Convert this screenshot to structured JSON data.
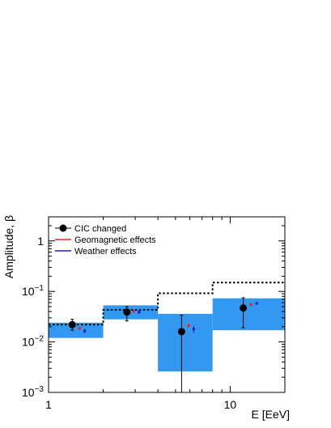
{
  "chart_data": {
    "type": "scatter",
    "xscale": "log",
    "yscale": "log",
    "xlim": [
      1,
      20
    ],
    "ylim": [
      0.001,
      3
    ],
    "xlabel": "E [EeV]",
    "ylabel": "Amplitude, β",
    "x_ticks": [
      {
        "v": 1,
        "label": "1"
      },
      {
        "v": 10,
        "label": "10"
      }
    ],
    "y_ticks": [
      {
        "v": 0.001,
        "base": "10",
        "exp": "−3"
      },
      {
        "v": 0.01,
        "base": "10",
        "exp": "−2"
      },
      {
        "v": 0.1,
        "base": "10",
        "exp": "−1"
      },
      {
        "v": 1,
        "base": "1",
        "exp": ""
      }
    ],
    "grid": false,
    "legend_position": "top-left",
    "legend": [
      {
        "label": "CIC changed",
        "style": "marker"
      },
      {
        "label": "Geomagnetic effects",
        "style": "line",
        "color": "#e8202a"
      },
      {
        "label": "Weather effects",
        "style": "line",
        "color": "#1f1fd0"
      }
    ],
    "bands": [
      {
        "x0": 1,
        "x1": 2,
        "y0": 0.012,
        "y1": 0.024
      },
      {
        "x0": 2,
        "x1": 4,
        "y0": 0.028,
        "y1": 0.053
      },
      {
        "x0": 4,
        "x1": 8,
        "y0": 0.0026,
        "y1": 0.036
      },
      {
        "x0": 8,
        "x1": 20,
        "y0": 0.017,
        "y1": 0.073
      }
    ],
    "band_color": "#3399f0",
    "upper_limits": [
      {
        "x0": 1,
        "x1": 2,
        "y": 0.022
      },
      {
        "x0": 2,
        "x1": 4,
        "y": 0.043
      },
      {
        "x0": 4,
        "x1": 8,
        "y": 0.092
      },
      {
        "x0": 8,
        "x1": 20,
        "y": 0.15
      }
    ],
    "series": [
      {
        "name": "CIC changed",
        "color": "#000000",
        "points": [
          {
            "x": 1.35,
            "y": 0.022,
            "ylo": 0.017,
            "yhi": 0.028
          },
          {
            "x": 2.7,
            "y": 0.039,
            "ylo": 0.026,
            "yhi": 0.05
          },
          {
            "x": 5.4,
            "y": 0.016,
            "ylo": 0.001,
            "yhi": 0.034
          },
          {
            "x": 11.8,
            "y": 0.047,
            "ylo": 0.019,
            "yhi": 0.075
          }
        ]
      },
      {
        "name": "Geomagnetic effects",
        "color": "#e8202a",
        "points": [
          {
            "x": 1.48,
            "y": 0.0185,
            "ylo": 0.0175,
            "yhi": 0.0196
          },
          {
            "x": 2.95,
            "y": 0.04,
            "ylo": 0.038,
            "yhi": 0.042
          },
          {
            "x": 5.9,
            "y": 0.021,
            "ylo": 0.019,
            "yhi": 0.023
          },
          {
            "x": 13.0,
            "y": 0.055,
            "ylo": 0.052,
            "yhi": 0.058
          }
        ]
      },
      {
        "name": "Weather effects",
        "color": "#1f1fd0",
        "points": [
          {
            "x": 1.58,
            "y": 0.0165,
            "ylo": 0.015,
            "yhi": 0.018
          },
          {
            "x": 3.15,
            "y": 0.039,
            "ylo": 0.036,
            "yhi": 0.042
          },
          {
            "x": 6.3,
            "y": 0.018,
            "ylo": 0.015,
            "yhi": 0.021
          },
          {
            "x": 14.0,
            "y": 0.058,
            "ylo": 0.055,
            "yhi": 0.061
          }
        ]
      }
    ]
  }
}
